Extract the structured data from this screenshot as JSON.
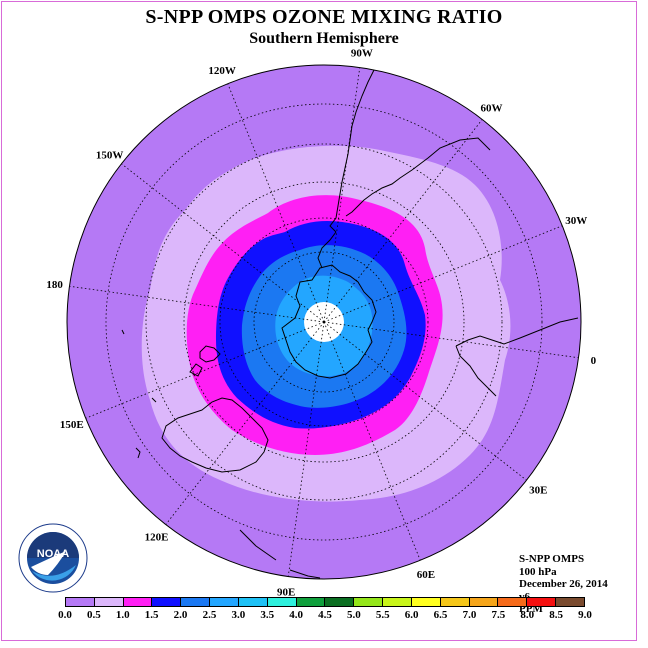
{
  "header": {
    "title": "S-NPP OMPS OZONE MIXING RATIO",
    "subtitle": "Southern Hemisphere"
  },
  "map": {
    "projection": "polar stereographic, South Pole centered",
    "longitude_labels": [
      {
        "text": "90W",
        "angle": -90
      },
      {
        "text": "60W",
        "angle": -60
      },
      {
        "text": "30W",
        "angle": -30
      },
      {
        "text": "0",
        "angle": 0
      },
      {
        "text": "30E",
        "angle": 30
      },
      {
        "text": "60E",
        "angle": 60
      },
      {
        "text": "90E",
        "angle": 90
      },
      {
        "text": "120E",
        "angle": 120
      },
      {
        "text": "150E",
        "angle": 150
      },
      {
        "text": "180",
        "angle": 180
      },
      {
        "text": "150W",
        "angle": 210
      },
      {
        "text": "120W",
        "angle": 240
      }
    ],
    "colors": {
      "background_disc": "#b579f5",
      "outer_band": "#dcb7fb",
      "magenta_band": "#ff1ff4",
      "dark_blue_band": "#1010ff",
      "medium_blue_band": "#1b78f2",
      "light_blue_band": "#23a6ff",
      "missing_data": "#ffffff",
      "coastline": "#000000",
      "grid": "#000000"
    }
  },
  "info": {
    "instrument": "S-NPP OMPS",
    "level": "100 hPa",
    "date": "December 26, 2014",
    "version": "v6",
    "units": "PPM"
  },
  "legend": {
    "ticks": [
      "0.0",
      "0.5",
      "1.0",
      "1.5",
      "2.0",
      "2.5",
      "3.0",
      "3.5",
      "4.0",
      "4.5",
      "5.0",
      "5.5",
      "6.0",
      "6.5",
      "7.0",
      "7.5",
      "8.0",
      "8.5",
      "9.0"
    ],
    "colors": [
      "#b579f5",
      "#dcb7fb",
      "#ff1ff4",
      "#1010ff",
      "#1b78f2",
      "#23a6ff",
      "#1ec1f5",
      "#2ef0dd",
      "#0f9f3c",
      "#0b6f22",
      "#94e61a",
      "#c8f51a",
      "#ffff1f",
      "#f5c71a",
      "#f5a51a",
      "#f56a1a",
      "#f51010",
      "#7a4a2e"
    ]
  },
  "logo": {
    "text": "NOAA",
    "ring_text": "NATIONAL OCEANIC AND ATMOSPHERIC ADMINISTRATION",
    "ring_text_bottom": "U.S. DEPARTMENT OF COMMERCE"
  }
}
